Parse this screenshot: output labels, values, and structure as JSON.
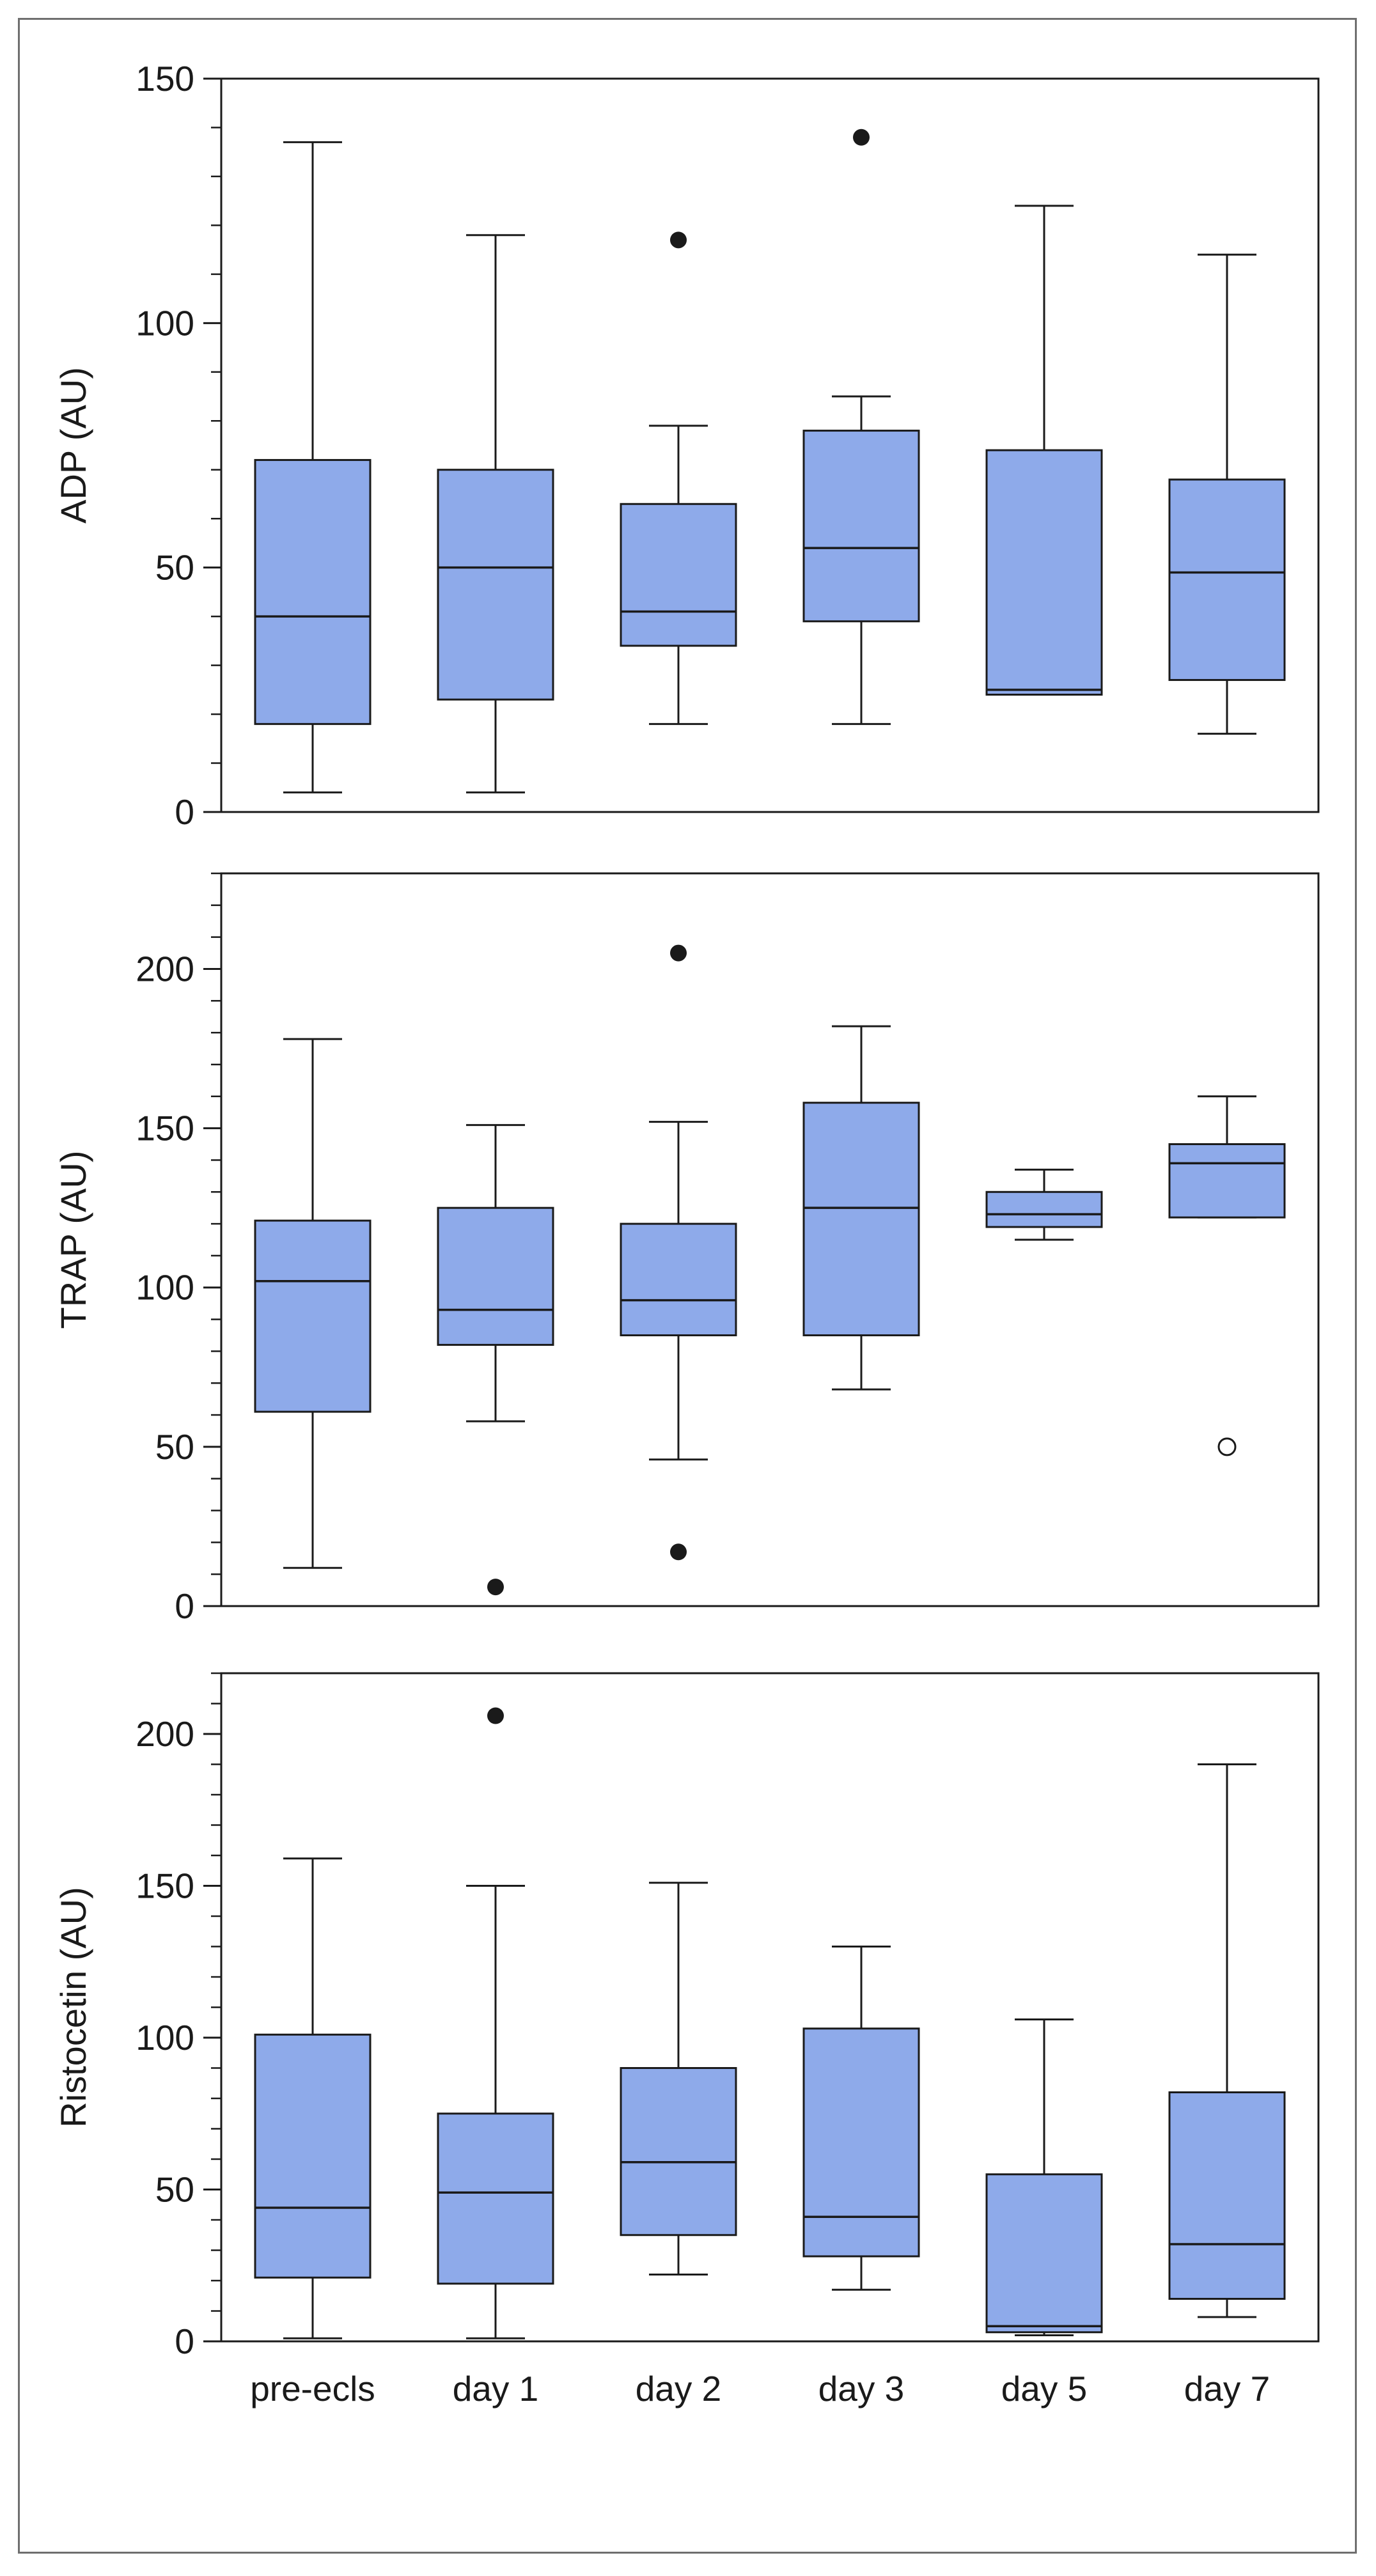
{
  "figure": {
    "background": "#ffffff",
    "box_fill": "#8eaaea",
    "line_color": "#1a1a1a"
  },
  "chart_data": [
    {
      "type": "box",
      "title": "",
      "xlabel": "",
      "ylabel": "ADP (AU)",
      "ylim": [
        0,
        150
      ],
      "yticks": [
        0,
        50,
        100,
        150
      ],
      "minor_tick_step": 10,
      "grid": false,
      "show_x_ticklabels": false,
      "categories": [
        "pre-ecls",
        "day 1",
        "day 2",
        "day 3",
        "day 5",
        "day 7"
      ],
      "boxes": [
        {
          "category": "pre-ecls",
          "whisker_low": 4,
          "q1": 18,
          "median": 40,
          "q3": 72,
          "whisker_high": 137
        },
        {
          "category": "day 1",
          "whisker_low": 4,
          "q1": 23,
          "median": 50,
          "q3": 70,
          "whisker_high": 118
        },
        {
          "category": "day 2",
          "whisker_low": 18,
          "q1": 34,
          "median": 41,
          "q3": 63,
          "whisker_high": 79
        },
        {
          "category": "day 3",
          "whisker_low": 18,
          "q1": 39,
          "median": 54,
          "q3": 78,
          "whisker_high": 85
        },
        {
          "category": "day 5",
          "whisker_low": 24,
          "q1": 24,
          "median": 25,
          "q3": 74,
          "whisker_high": 124
        },
        {
          "category": "day 7",
          "whisker_low": 16,
          "q1": 27,
          "median": 49,
          "q3": 68,
          "whisker_high": 114
        }
      ],
      "outliers": [
        {
          "category": "day 2",
          "value": 117,
          "marker": "filled"
        },
        {
          "category": "day 3",
          "value": 138,
          "marker": "filled"
        }
      ]
    },
    {
      "type": "box",
      "title": "",
      "xlabel": "",
      "ylabel": "TRAP (AU)",
      "ylim": [
        0,
        230
      ],
      "yticks": [
        0,
        50,
        100,
        150,
        200
      ],
      "minor_tick_step": 10,
      "grid": false,
      "show_x_ticklabels": false,
      "categories": [
        "pre-ecls",
        "day 1",
        "day 2",
        "day 3",
        "day 5",
        "day 7"
      ],
      "boxes": [
        {
          "category": "pre-ecls",
          "whisker_low": 12,
          "q1": 61,
          "median": 102,
          "q3": 121,
          "whisker_high": 178
        },
        {
          "category": "day 1",
          "whisker_low": 58,
          "q1": 82,
          "median": 93,
          "q3": 125,
          "whisker_high": 151
        },
        {
          "category": "day 2",
          "whisker_low": 46,
          "q1": 85,
          "median": 96,
          "q3": 120,
          "whisker_high": 152
        },
        {
          "category": "day 3",
          "whisker_low": 68,
          "q1": 85,
          "median": 125,
          "q3": 158,
          "whisker_high": 182
        },
        {
          "category": "day 5",
          "whisker_low": 115,
          "q1": 119,
          "median": 123,
          "q3": 130,
          "whisker_high": 137
        },
        {
          "category": "day 7",
          "whisker_low": 122,
          "q1": 122,
          "median": 139,
          "q3": 145,
          "whisker_high": 160
        }
      ],
      "outliers": [
        {
          "category": "day 1",
          "value": 6,
          "marker": "filled"
        },
        {
          "category": "day 2",
          "value": 205,
          "marker": "filled"
        },
        {
          "category": "day 2",
          "value": 17,
          "marker": "filled"
        },
        {
          "category": "day 7",
          "value": 50,
          "marker": "open"
        }
      ]
    },
    {
      "type": "box",
      "title": "",
      "xlabel": "",
      "ylabel": "Ristocetin (AU)",
      "ylim": [
        0,
        220
      ],
      "yticks": [
        0,
        50,
        100,
        150,
        200
      ],
      "minor_tick_step": 10,
      "grid": false,
      "show_x_ticklabels": true,
      "categories": [
        "pre-ecls",
        "day 1",
        "day 2",
        "day 3",
        "day 5",
        "day 7"
      ],
      "boxes": [
        {
          "category": "pre-ecls",
          "whisker_low": 1,
          "q1": 21,
          "median": 44,
          "q3": 101,
          "whisker_high": 159
        },
        {
          "category": "day 1",
          "whisker_low": 1,
          "q1": 19,
          "median": 49,
          "q3": 75,
          "whisker_high": 150
        },
        {
          "category": "day 2",
          "whisker_low": 22,
          "q1": 35,
          "median": 59,
          "q3": 90,
          "whisker_high": 151
        },
        {
          "category": "day 3",
          "whisker_low": 17,
          "q1": 28,
          "median": 41,
          "q3": 103,
          "whisker_high": 130
        },
        {
          "category": "day 5",
          "whisker_low": 2,
          "q1": 3,
          "median": 5,
          "q3": 55,
          "whisker_high": 106
        },
        {
          "category": "day 7",
          "whisker_low": 8,
          "q1": 14,
          "median": 32,
          "q3": 82,
          "whisker_high": 190
        }
      ],
      "outliers": [
        {
          "category": "day 1",
          "value": 206,
          "marker": "filled"
        }
      ]
    }
  ]
}
